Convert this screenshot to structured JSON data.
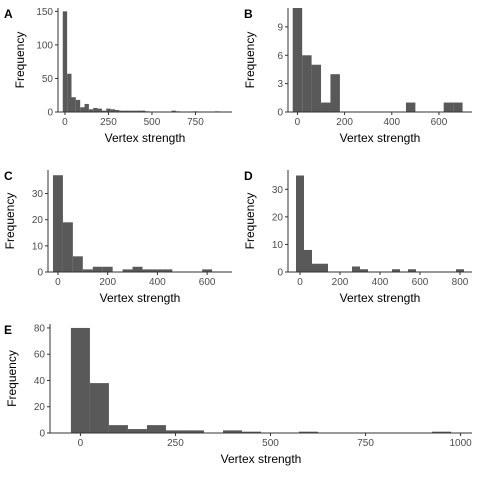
{
  "chart_data": [
    {
      "panel": "A",
      "type": "bar",
      "xlabel": "Vertex strength",
      "ylabel": "Frequency",
      "xlim": [
        -40,
        960
      ],
      "ylim": [
        0,
        155
      ],
      "xticks": [
        0,
        250,
        500,
        750
      ],
      "yticks": [
        0,
        50,
        100,
        150
      ],
      "bin_width": 25,
      "bars": [
        {
          "x0": -12.5,
          "count": 150
        },
        {
          "x0": 12.5,
          "count": 57
        },
        {
          "x0": 37.5,
          "count": 22
        },
        {
          "x0": 62.5,
          "count": 18
        },
        {
          "x0": 87.5,
          "count": 7
        },
        {
          "x0": 112.5,
          "count": 12
        },
        {
          "x0": 137.5,
          "count": 4
        },
        {
          "x0": 162.5,
          "count": 6
        },
        {
          "x0": 187.5,
          "count": 5
        },
        {
          "x0": 212.5,
          "count": 2
        },
        {
          "x0": 237.5,
          "count": 5
        },
        {
          "x0": 262.5,
          "count": 4
        },
        {
          "x0": 287.5,
          "count": 3
        },
        {
          "x0": 312.5,
          "count": 2
        },
        {
          "x0": 337.5,
          "count": 2
        },
        {
          "x0": 362.5,
          "count": 2
        },
        {
          "x0": 387.5,
          "count": 2
        },
        {
          "x0": 412.5,
          "count": 2
        },
        {
          "x0": 437.5,
          "count": 2
        },
        {
          "x0": 462.5,
          "count": 1
        },
        {
          "x0": 612.5,
          "count": 2
        },
        {
          "x0": 637.5,
          "count": 1
        },
        {
          "x0": 737.5,
          "count": 1
        },
        {
          "x0": 862.5,
          "count": 1
        }
      ]
    },
    {
      "panel": "B",
      "type": "bar",
      "xlabel": "Vertex strength",
      "ylabel": "Frequency",
      "xlim": [
        -40,
        740
      ],
      "ylim": [
        0,
        11
      ],
      "xticks": [
        0,
        200,
        400,
        600
      ],
      "yticks": [
        0,
        3,
        6,
        9
      ],
      "bin_width": 40,
      "bars": [
        {
          "x0": -20,
          "count": 11
        },
        {
          "x0": 20,
          "count": 6
        },
        {
          "x0": 60,
          "count": 5
        },
        {
          "x0": 100,
          "count": 1
        },
        {
          "x0": 140,
          "count": 4
        },
        {
          "x0": 460,
          "count": 1
        },
        {
          "x0": 620,
          "count": 1
        },
        {
          "x0": 660,
          "count": 1
        }
      ]
    },
    {
      "panel": "C",
      "type": "bar",
      "xlabel": "Vertex strength",
      "ylabel": "Frequency",
      "xlim": [
        -40,
        700
      ],
      "ylim": [
        0,
        39
      ],
      "xticks": [
        0,
        200,
        400,
        600
      ],
      "yticks": [
        0,
        10,
        20,
        30
      ],
      "bin_width": 40,
      "bars": [
        {
          "x0": -20,
          "count": 37
        },
        {
          "x0": 20,
          "count": 19
        },
        {
          "x0": 60,
          "count": 6
        },
        {
          "x0": 100,
          "count": 1
        },
        {
          "x0": 140,
          "count": 2
        },
        {
          "x0": 180,
          "count": 2
        },
        {
          "x0": 260,
          "count": 1
        },
        {
          "x0": 300,
          "count": 2
        },
        {
          "x0": 340,
          "count": 1
        },
        {
          "x0": 380,
          "count": 1
        },
        {
          "x0": 420,
          "count": 1
        },
        {
          "x0": 580,
          "count": 1
        }
      ]
    },
    {
      "panel": "D",
      "type": "bar",
      "xlabel": "Vertex strength",
      "ylabel": "Frequency",
      "xlim": [
        -60,
        860
      ],
      "ylim": [
        0,
        37
      ],
      "xticks": [
        0,
        200,
        400,
        600,
        800
      ],
      "yticks": [
        0,
        10,
        20,
        30
      ],
      "bin_width": 40,
      "bars": [
        {
          "x0": -20,
          "count": 35
        },
        {
          "x0": 20,
          "count": 8
        },
        {
          "x0": 60,
          "count": 3
        },
        {
          "x0": 100,
          "count": 3
        },
        {
          "x0": 260,
          "count": 2
        },
        {
          "x0": 300,
          "count": 1
        },
        {
          "x0": 460,
          "count": 1
        },
        {
          "x0": 540,
          "count": 1
        },
        {
          "x0": 780,
          "count": 1
        }
      ]
    },
    {
      "panel": "E",
      "type": "bar",
      "xlabel": "Vertex strength",
      "ylabel": "Frequency",
      "xlim": [
        -80,
        1030
      ],
      "ylim": [
        0,
        83
      ],
      "xticks": [
        0,
        250,
        500,
        750,
        1000
      ],
      "yticks": [
        0,
        20,
        40,
        60,
        80
      ],
      "bin_width": 50,
      "bars": [
        {
          "x0": -25,
          "count": 80
        },
        {
          "x0": 25,
          "count": 38
        },
        {
          "x0": 75,
          "count": 6
        },
        {
          "x0": 125,
          "count": 3
        },
        {
          "x0": 175,
          "count": 6
        },
        {
          "x0": 225,
          "count": 2
        },
        {
          "x0": 275,
          "count": 2
        },
        {
          "x0": 375,
          "count": 2
        },
        {
          "x0": 425,
          "count": 1
        },
        {
          "x0": 575,
          "count": 1
        },
        {
          "x0": 925,
          "count": 1
        }
      ]
    }
  ],
  "colors": {
    "bar_fill": "#595959",
    "axis": "#333333",
    "tick_text": "#4d4d4d",
    "title_text": "#000000"
  }
}
